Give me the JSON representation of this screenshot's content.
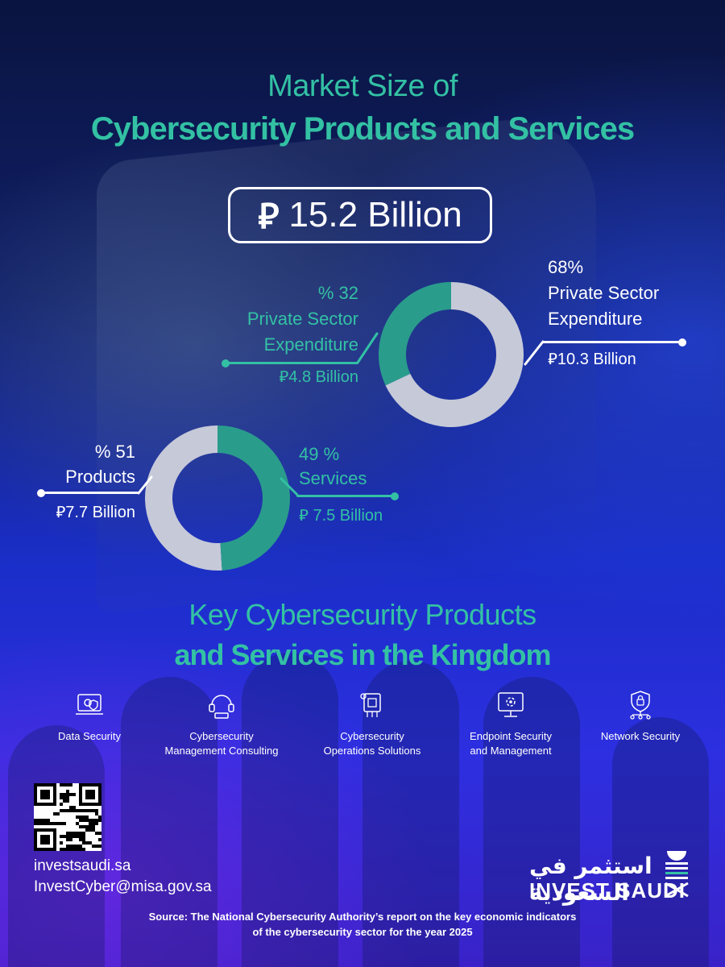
{
  "title": {
    "line1": "Market Size of",
    "line2": "Cybersecurity Products and Services"
  },
  "total": {
    "currency_symbol": "⃁",
    "value": "15.2 Billion"
  },
  "chart_data": [
    {
      "type": "pie",
      "series": [
        {
          "name": "Private Sector Expenditure",
          "value": 32,
          "amount": "4.8 Billion",
          "color": "#2a9c8c"
        },
        {
          "name": "Private Sector Expenditure",
          "value": 68,
          "amount": "10.3 Billion",
          "color": "#c6c9d8"
        }
      ]
    },
    {
      "type": "pie",
      "series": [
        {
          "name": "Products",
          "value": 51,
          "amount": "7.7 Billion",
          "color": "#c6c9d8"
        },
        {
          "name": "Services",
          "value": 49,
          "amount": "7.5 Billion",
          "color": "#2a9c8c"
        }
      ]
    }
  ],
  "donut1": {
    "left_pct": "% 32",
    "left_name_1": "Private Sector",
    "left_name_2": "Expenditure",
    "left_amount": "4.8 Billion",
    "right_pct": "68%",
    "right_name_1": "Private Sector",
    "right_name_2": "Expenditure",
    "right_amount": "10.3 Billion"
  },
  "donut2": {
    "left_pct": "% 51",
    "left_name": "Products",
    "left_amount": "7.7 Billion",
    "right_pct": "49 %",
    "right_name": "Services",
    "right_amount": " 7.5 Billion"
  },
  "section2": {
    "line1": "Key Cybersecurity Products",
    "line2": "and Services in the Kingdom"
  },
  "services": [
    {
      "icon": "data-security-icon",
      "label1": "Data Security",
      "label2": ""
    },
    {
      "icon": "consulting-icon",
      "label1": "Cybersecurity",
      "label2": "Management Consulting"
    },
    {
      "icon": "operations-chip-icon",
      "label1": "Cybersecurity",
      "label2": "Operations Solutions"
    },
    {
      "icon": "endpoint-monitor-icon",
      "label1": "Endpoint Security",
      "label2": "and Management"
    },
    {
      "icon": "network-shield-icon",
      "label1": "Network Security",
      "label2": ""
    }
  ],
  "contact": {
    "website": "investsaudi.sa",
    "email": "InvestCyber@misa.gov.sa"
  },
  "logo": {
    "arabic": "استثمر في السعودية",
    "english": "INVEST SAUDI"
  },
  "source": {
    "line1": "Source: The National Cybersecurity Authority’s report on the key economic indicators",
    "line2": "of the cybersecurity sector for the year 2025"
  },
  "colors": {
    "accent_teal": "#33c1a4",
    "donut_teal": "#2a9c8c",
    "donut_gray": "#c6c9d8"
  }
}
